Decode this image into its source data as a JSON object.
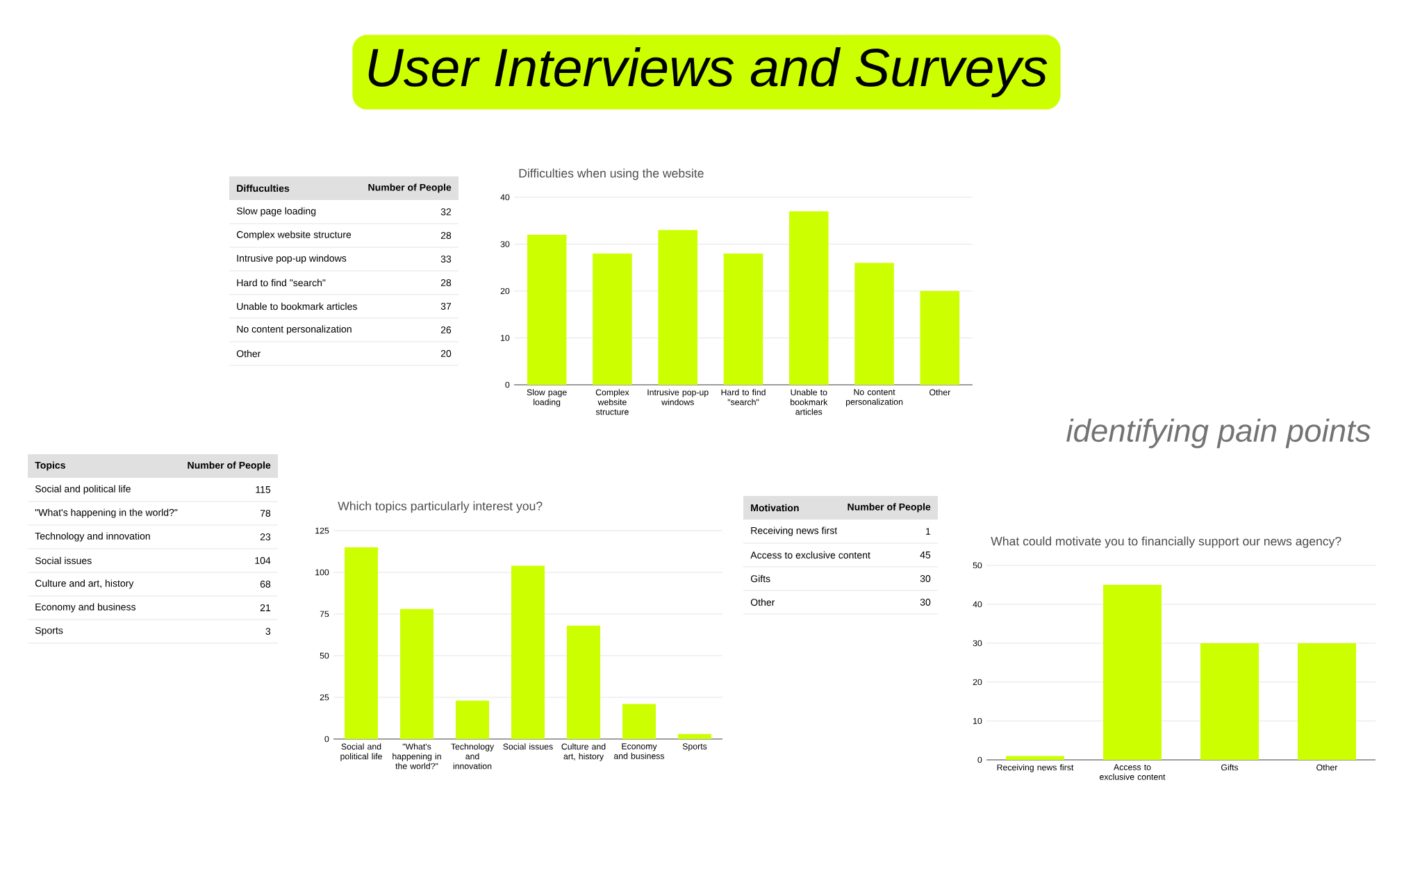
{
  "chart_data": [
    {
      "type": "other",
      "xlabel": "Diffuculties",
      "ylabel": "Number of People",
      "categories": [
        "Slow page loading",
        "Complex website structure",
        "Intrusive pop-up windows",
        "Hard to find \"search\"",
        "Unable to bookmark articles",
        "No content personalization",
        "Other"
      ],
      "values": [
        32,
        28,
        33,
        28,
        37,
        26,
        20
      ],
      "value_labels": [
        "32",
        "28",
        "33",
        "28",
        "37",
        "26",
        "20"
      ],
      "annotations": [
        "User Interviews and Surveys"
      ]
    },
    {
      "type": "bar",
      "title": "Difficulties when using the website",
      "categories": [
        "Slow page loading",
        "Complex website structure",
        "Intrusive pop-up windows",
        "Hard to find \"search\"",
        "Unable to bookmark articles",
        "No content personalization",
        "Other"
      ],
      "values": [
        32,
        28,
        33,
        28,
        37,
        26,
        20
      ],
      "color": "#ccff00",
      "ylim": [
        0,
        40
      ],
      "yticks": [
        0,
        10,
        20,
        30,
        40
      ],
      "grid": "y"
    },
    {
      "type": "other",
      "xlabel": "Topics",
      "ylabel": "Number of People",
      "categories": [
        "Social and political life",
        "\"What's happening in the world?\"",
        "Technology and innovation",
        "Social issues",
        "Culture and art, history",
        "Economy and business",
        "Sports"
      ],
      "values": [
        115,
        78,
        23,
        104,
        68,
        21,
        3
      ],
      "value_labels": [
        "115",
        "78",
        "23",
        "104",
        "68",
        "21",
        "3"
      ]
    },
    {
      "type": "bar",
      "title": "Which topics particularly interest you?",
      "categories": [
        "Social and political life",
        "\"What's happening in the world?\"",
        "Technology and innovation",
        "Social issues",
        "Culture and art, history",
        "Economy and business",
        "Sports"
      ],
      "values": [
        115,
        78,
        23,
        104,
        68,
        21,
        3
      ],
      "color": "#ccff00",
      "ylim": [
        0,
        125
      ],
      "yticks": [
        0,
        25,
        50,
        75,
        100,
        125
      ],
      "grid": "y"
    },
    {
      "type": "other",
      "xlabel": "Motivation",
      "ylabel": "Number of People",
      "categories": [
        "Receiving news first",
        "Access to exclusive content",
        "Gifts",
        "Other"
      ],
      "values": [
        1,
        45,
        30,
        30
      ],
      "value_labels": [
        "1",
        "45",
        "30",
        "30"
      ],
      "annotations": [
        "identifying pain points"
      ]
    },
    {
      "type": "bar",
      "title": "What could motivate you to financially support our news agency?",
      "categories": [
        "Receiving news first",
        "Access to exclusive content",
        "Gifts",
        "Other"
      ],
      "values": [
        1,
        45,
        30,
        30
      ],
      "color": "#ccff00",
      "ylim": [
        0,
        50
      ],
      "yticks": [
        0,
        10,
        20,
        30,
        40,
        50
      ],
      "grid": "y"
    }
  ]
}
